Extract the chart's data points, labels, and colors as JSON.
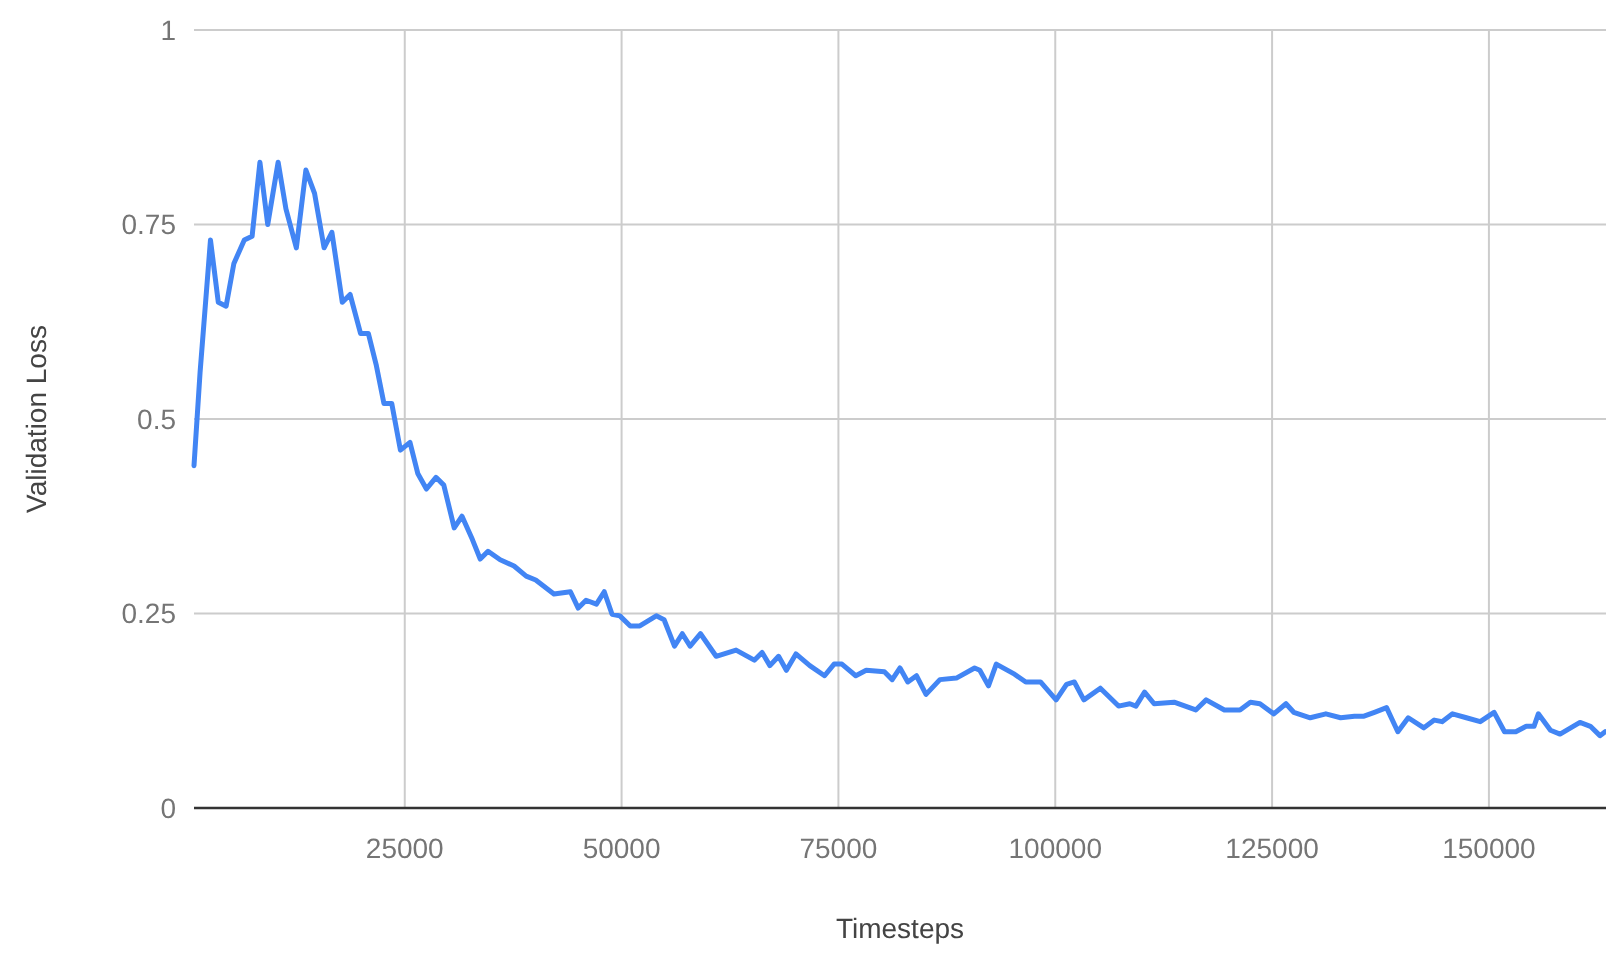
{
  "chart_data": {
    "type": "line",
    "xlabel": "Timesteps",
    "ylabel": "Validation Loss",
    "xlim": [
      700,
      163500
    ],
    "xticks": [
      25000,
      50000,
      75000,
      100000,
      125000,
      150000
    ],
    "ylim": [
      0,
      1
    ],
    "yticks": [
      0,
      0.25,
      0.5,
      0.75,
      1
    ],
    "grid": true,
    "series": [
      {
        "color": "#4285f4",
        "x": [
          700,
          1400,
          2600,
          3500,
          4400,
          5300,
          6500,
          7400,
          8300,
          9200,
          10400,
          11300,
          12500,
          13600,
          14600,
          15700,
          16600,
          17800,
          18700,
          19900,
          20800,
          21700,
          22600,
          23500,
          24500,
          25600,
          26500,
          27500,
          28600,
          29500,
          30700,
          31600,
          32800,
          33700,
          34600,
          36000,
          37600,
          39000,
          40100,
          42200,
          44100,
          45000,
          45900,
          47100,
          48000,
          48900,
          49800,
          51000,
          52100,
          54000,
          54900,
          56100,
          57000,
          57900,
          59100,
          60900,
          63200,
          65300,
          66200,
          67100,
          68100,
          69000,
          70100,
          71700,
          73400,
          74500,
          75400,
          77000,
          78200,
          80300,
          81200,
          82100,
          83000,
          84000,
          85100,
          86700,
          88600,
          90700,
          91300,
          92300,
          93200,
          95300,
          96600,
          98300,
          100100,
          101300,
          102200,
          103300,
          105200,
          107300,
          108600,
          109300,
          110300,
          111400,
          113700,
          116200,
          117400,
          119500,
          121300,
          122500,
          123600,
          125200,
          126600,
          127500,
          129400,
          131200,
          132900,
          134500,
          135600,
          136800,
          138200,
          139500,
          140700,
          142500,
          143700,
          144600,
          145800,
          147400,
          149000,
          150600,
          151800,
          153100,
          154300,
          155200,
          155700,
          157100,
          158200,
          160500,
          161700,
          162800,
          163400
        ],
        "values": [
          0.44,
          0.56,
          0.73,
          0.65,
          0.645,
          0.7,
          0.73,
          0.735,
          0.83,
          0.75,
          0.83,
          0.77,
          0.72,
          0.82,
          0.79,
          0.72,
          0.74,
          0.65,
          0.66,
          0.61,
          0.61,
          0.57,
          0.52,
          0.52,
          0.46,
          0.47,
          0.43,
          0.41,
          0.425,
          0.415,
          0.36,
          0.375,
          0.345,
          0.32,
          0.33,
          0.319,
          0.311,
          0.298,
          0.293,
          0.275,
          0.278,
          0.257,
          0.267,
          0.262,
          0.278,
          0.249,
          0.247,
          0.234,
          0.234,
          0.247,
          0.242,
          0.208,
          0.224,
          0.208,
          0.224,
          0.195,
          0.203,
          0.19,
          0.2,
          0.183,
          0.195,
          0.177,
          0.198,
          0.183,
          0.17,
          0.185,
          0.185,
          0.17,
          0.177,
          0.175,
          0.165,
          0.18,
          0.162,
          0.17,
          0.146,
          0.165,
          0.167,
          0.18,
          0.177,
          0.157,
          0.185,
          0.172,
          0.162,
          0.162,
          0.139,
          0.159,
          0.162,
          0.139,
          0.154,
          0.131,
          0.134,
          0.131,
          0.149,
          0.134,
          0.136,
          0.126,
          0.139,
          0.126,
          0.126,
          0.136,
          0.134,
          0.121,
          0.134,
          0.123,
          0.116,
          0.121,
          0.116,
          0.118,
          0.118,
          0.123,
          0.129,
          0.098,
          0.116,
          0.103,
          0.113,
          0.111,
          0.121,
          0.116,
          0.111,
          0.123,
          0.098,
          0.098,
          0.105,
          0.105,
          0.121,
          0.1,
          0.095,
          0.11,
          0.105,
          0.093,
          0.098
        ]
      }
    ]
  }
}
